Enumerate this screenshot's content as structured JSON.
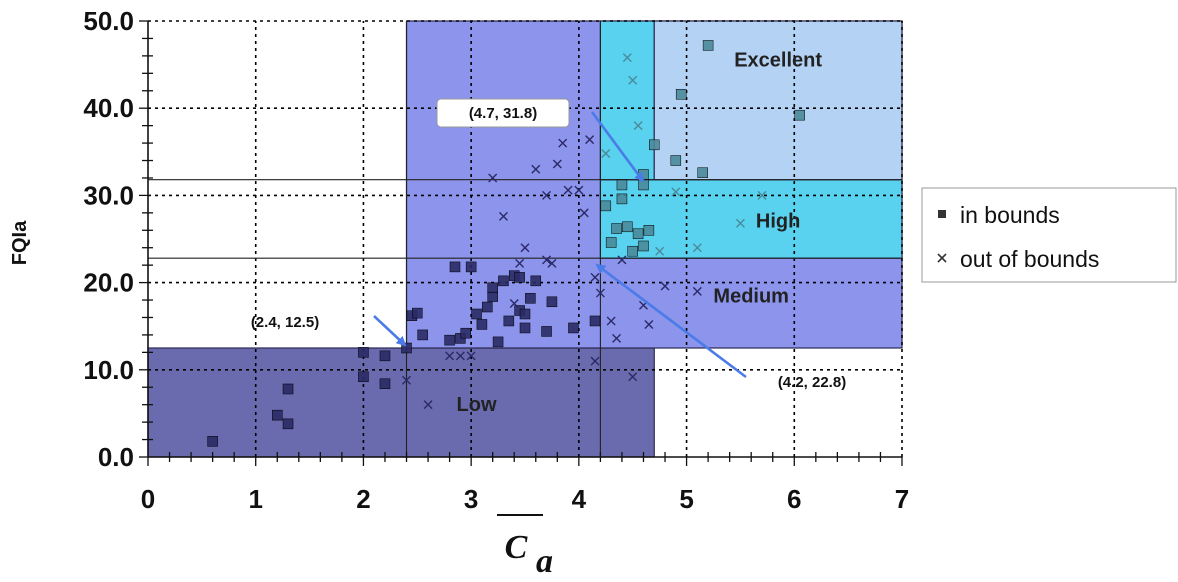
{
  "chart_data": {
    "type": "scatter",
    "xlabel": "C",
    "xlabel_subscript": "a",
    "ylabel": "FQIa",
    "xlim": [
      0,
      7
    ],
    "ylim": [
      0,
      50
    ],
    "xticks": [
      "0",
      "1",
      "2",
      "3",
      "4",
      "5",
      "6",
      "7"
    ],
    "yticks": [
      "0.0",
      "10.0",
      "20.0",
      "30.0",
      "40.0",
      "50.0"
    ],
    "grid": true,
    "legend": {
      "placement": "right",
      "entries": [
        {
          "marker": "square",
          "label": "in bounds"
        },
        {
          "marker": "x",
          "label": "out of bounds"
        }
      ]
    },
    "regions": [
      {
        "label": "Low",
        "x": [
          0,
          4.7
        ],
        "y": [
          0,
          12.5
        ],
        "color": "#6a6aae"
      },
      {
        "label": "Medium",
        "x": [
          2.4,
          7
        ],
        "y": [
          12.5,
          50
        ],
        "color": "#8c94ec"
      },
      {
        "label": "High",
        "x": [
          4.2,
          7
        ],
        "y": [
          22.8,
          31.8
        ],
        "color": "#58d2ee"
      },
      {
        "label": "",
        "x": [
          4.2,
          4.7
        ],
        "y": [
          31.8,
          50
        ],
        "color": "#58d2ee"
      },
      {
        "label": "Excellent",
        "x": [
          4.7,
          7
        ],
        "y": [
          31.8,
          50
        ],
        "color": "#b4d2f4"
      }
    ],
    "annotations": [
      {
        "text": "(4.7, 31.8)",
        "point": [
          4.7,
          31.8
        ],
        "label_at": [
          4.0,
          38.7
        ]
      },
      {
        "text": "(2.4, 12.5)",
        "point": [
          2.4,
          12.5
        ],
        "label_at": [
          2.1,
          15.5
        ]
      },
      {
        "text": "(4.2, 22.8)",
        "point": [
          4.2,
          22.8
        ],
        "label_at": [
          5.4,
          8.0
        ]
      }
    ],
    "series": [
      {
        "name": "in bounds",
        "marker": "square",
        "x": [
          0.6,
          1.2,
          1.3,
          1.3,
          2.0,
          2.0,
          2.2,
          2.2,
          2.4,
          2.45,
          2.5,
          2.55,
          2.8,
          2.85,
          2.9,
          2.95,
          3.0,
          3.05,
          3.1,
          3.15,
          3.2,
          3.2,
          3.25,
          3.3,
          3.35,
          3.4,
          3.45,
          3.45,
          3.5,
          3.5,
          3.55,
          3.6,
          3.7,
          3.75,
          3.95,
          4.15,
          4.25,
          4.3,
          4.35,
          4.4,
          4.4,
          4.45,
          4.5,
          4.55,
          4.6,
          4.6,
          4.65,
          4.7,
          4.6,
          4.9,
          4.95,
          5.15,
          5.2,
          6.05
        ],
        "y": [
          1.8,
          4.8,
          3.8,
          7.8,
          9.2,
          12.0,
          11.6,
          8.4,
          12.5,
          16.2,
          16.5,
          14.0,
          13.4,
          21.8,
          13.6,
          14.2,
          21.8,
          16.4,
          15.2,
          17.2,
          18.4,
          19.4,
          13.2,
          20.2,
          15.6,
          20.8,
          16.8,
          20.6,
          14.8,
          16.4,
          18.2,
          20.2,
          14.4,
          17.8,
          14.8,
          15.6,
          28.8,
          24.6,
          26.2,
          29.6,
          31.2,
          26.4,
          23.6,
          25.6,
          31.2,
          24.2,
          26.0,
          35.8,
          32.4,
          34.0,
          41.6,
          32.6,
          47.2,
          39.2
        ]
      },
      {
        "name": "out of bounds",
        "marker": "x",
        "x": [
          2.4,
          2.6,
          2.8,
          2.9,
          3.0,
          3.2,
          3.3,
          3.4,
          3.45,
          3.5,
          3.6,
          3.7,
          3.75,
          3.8,
          3.85,
          3.9,
          4.0,
          4.05,
          4.1,
          4.15,
          4.2,
          4.25,
          4.3,
          4.35,
          4.4,
          4.45,
          4.5,
          4.55,
          4.6,
          4.65,
          4.75,
          4.8,
          4.9,
          5.1,
          5.5,
          5.7,
          5.1,
          4.5,
          4.15,
          3.7
        ],
        "y": [
          8.8,
          6.0,
          11.6,
          11.6,
          11.6,
          32.0,
          27.6,
          17.6,
          22.2,
          24.0,
          33.0,
          30.0,
          22.2,
          33.6,
          36.0,
          30.6,
          30.6,
          28.0,
          36.4,
          20.6,
          18.8,
          34.8,
          15.6,
          13.6,
          22.6,
          45.8,
          43.2,
          38.0,
          17.4,
          15.2,
          23.6,
          19.6,
          30.4,
          19.0,
          26.8,
          30.0,
          24.0,
          9.2,
          11.0,
          22.6
        ]
      }
    ]
  }
}
